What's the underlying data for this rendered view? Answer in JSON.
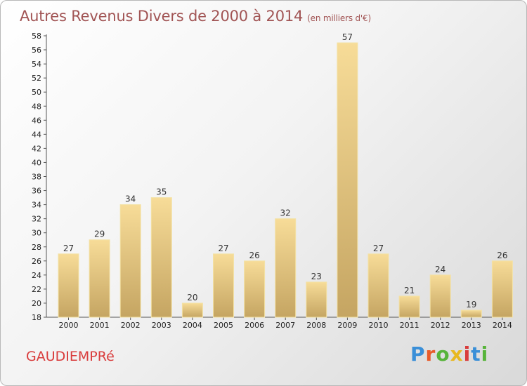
{
  "header": {
    "title": "Autres Revenus Divers de 2000 à 2014",
    "unit": "(en milliers d'€)"
  },
  "footer": {
    "city": "GAUDIEMPRé",
    "logo": {
      "letters": [
        "P",
        "r",
        "o",
        "x",
        "i",
        "t",
        "i"
      ],
      "colors": [
        "#3a8fd8",
        "#e85b2a",
        "#57b43a",
        "#e8b820",
        "#d93c3c",
        "#3a8fd8",
        "#57b43a"
      ]
    }
  },
  "colors": {
    "bar_light": "#f7dc98",
    "bar_dark": "#c5a562",
    "title": "#a15454",
    "city": "#d93c3c"
  },
  "chart_data": {
    "type": "bar",
    "categories": [
      "2000",
      "2001",
      "2002",
      "2003",
      "2004",
      "2005",
      "2006",
      "2007",
      "2008",
      "2009",
      "2010",
      "2011",
      "2012",
      "2013",
      "2014"
    ],
    "values": [
      27,
      29,
      34,
      35,
      20,
      27,
      26,
      32,
      23,
      57,
      27,
      21,
      24,
      19,
      26
    ],
    "ylim": [
      18,
      58
    ],
    "yticks": [
      18,
      20,
      22,
      24,
      26,
      28,
      30,
      32,
      34,
      36,
      38,
      40,
      42,
      44,
      46,
      48,
      50,
      52,
      54,
      56,
      58
    ],
    "grid": false,
    "data_labels": true
  }
}
